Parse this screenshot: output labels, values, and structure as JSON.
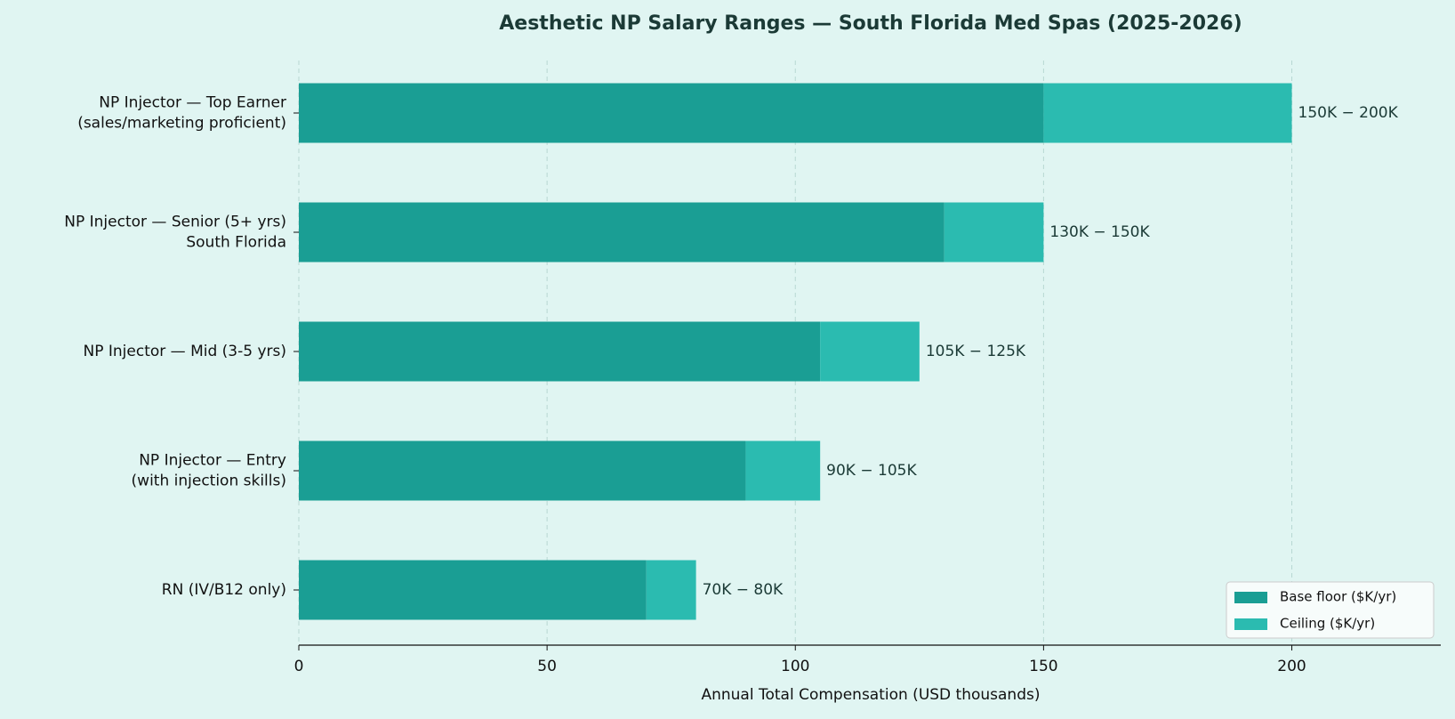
{
  "chart_data": {
    "type": "stacked-barh",
    "title": "Aesthetic NP Salary Ranges — South Florida Med Spas (2025-2026)",
    "x_label": "Annual Total Compensation (USD thousands)",
    "categories": [
      "NP Injector — Top Earner\n(sales/marketing proficient)",
      "NP Injector — Senior (5+ yrs)\nSouth Florida",
      "NP Injector — Mid (3-5 yrs)",
      "NP Injector — Entry\n(with injection skills)",
      "RN (IV/B12 only)"
    ],
    "series": [
      {
        "name": "Base floor ($K/yr)",
        "color": "#1a9e94",
        "values": [
          150,
          130,
          105,
          90,
          70
        ]
      },
      {
        "name": "Ceiling ($K/yr)",
        "color": "#2bbbb0",
        "values": [
          50,
          20,
          20,
          15,
          10
        ]
      }
    ],
    "range_labels": [
      "150K − 200K",
      "130K − 150K",
      "105K − 125K",
      "90K − 105K",
      "70K − 80K"
    ],
    "xlim": [
      0,
      230
    ],
    "xticks": [
      0,
      50,
      100,
      150,
      200
    ],
    "grid": true,
    "legend": "lower right"
  }
}
